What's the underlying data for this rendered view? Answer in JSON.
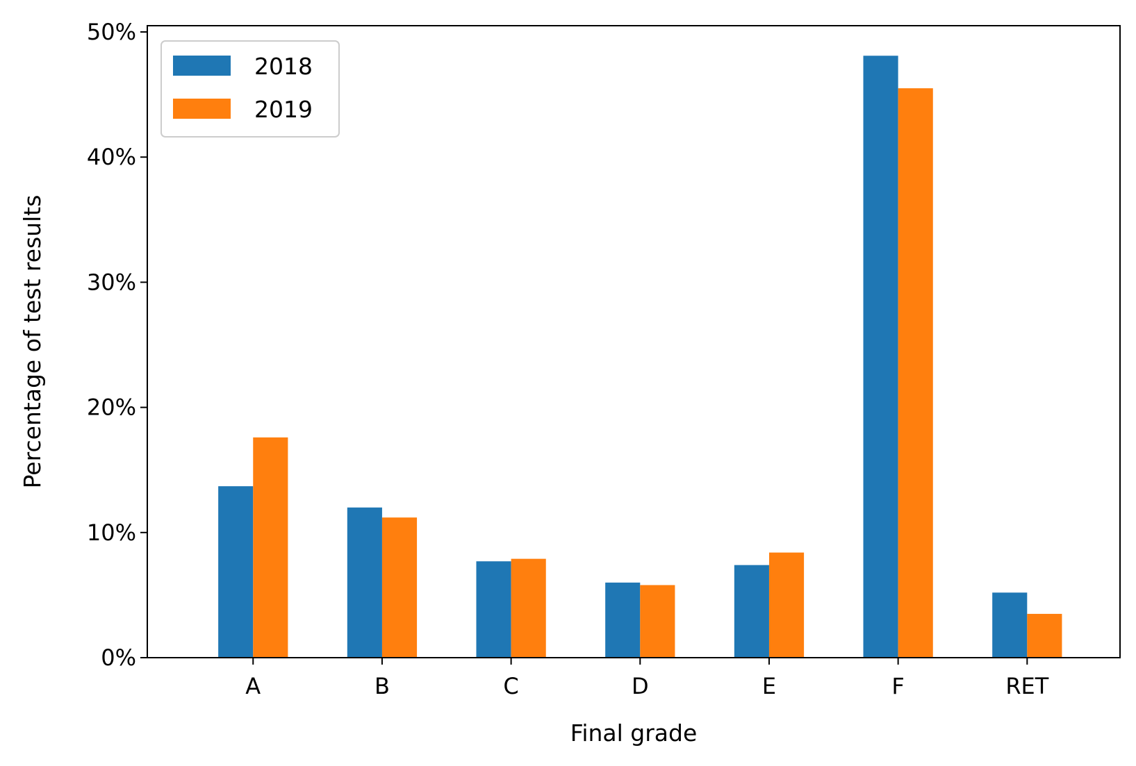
{
  "chart_data": {
    "type": "bar",
    "categories": [
      "A",
      "B",
      "C",
      "D",
      "E",
      "F",
      "RET"
    ],
    "series": [
      {
        "name": "2018",
        "color": "#1f77b4",
        "values": [
          13.7,
          12.0,
          7.7,
          6.0,
          7.4,
          48.1,
          5.2
        ]
      },
      {
        "name": "2019",
        "color": "#ff7f0e",
        "values": [
          17.6,
          11.2,
          7.9,
          5.8,
          8.4,
          45.5,
          3.5
        ]
      }
    ],
    "xlabel": "Final grade",
    "ylabel": "Percentage of test results",
    "ylim": [
      0,
      50.5
    ],
    "yticks": [
      0,
      10,
      20,
      30,
      40,
      50
    ],
    "ytick_labels": [
      "0%",
      "10%",
      "20%",
      "30%",
      "40%",
      "50%"
    ],
    "grid": false,
    "legend_position": "upper-left"
  }
}
